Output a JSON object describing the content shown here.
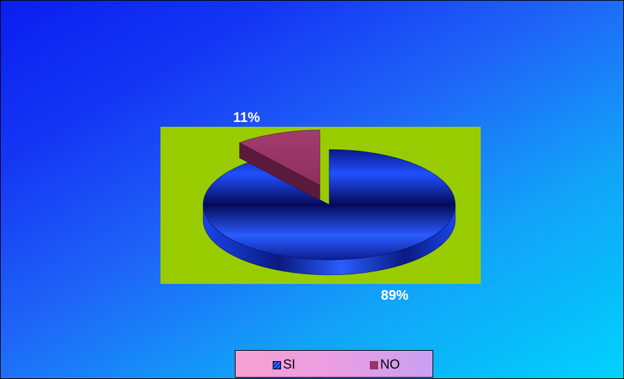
{
  "chart_data": {
    "type": "pie",
    "title": "",
    "categories": [
      "SI",
      "NO"
    ],
    "values": [
      89,
      11
    ],
    "data_labels": [
      "89%",
      "11%"
    ],
    "colors": [
      "#1030e0",
      "#993366"
    ],
    "plot_background": "#99cc00",
    "legend_position": "bottom",
    "three_d": true
  }
}
